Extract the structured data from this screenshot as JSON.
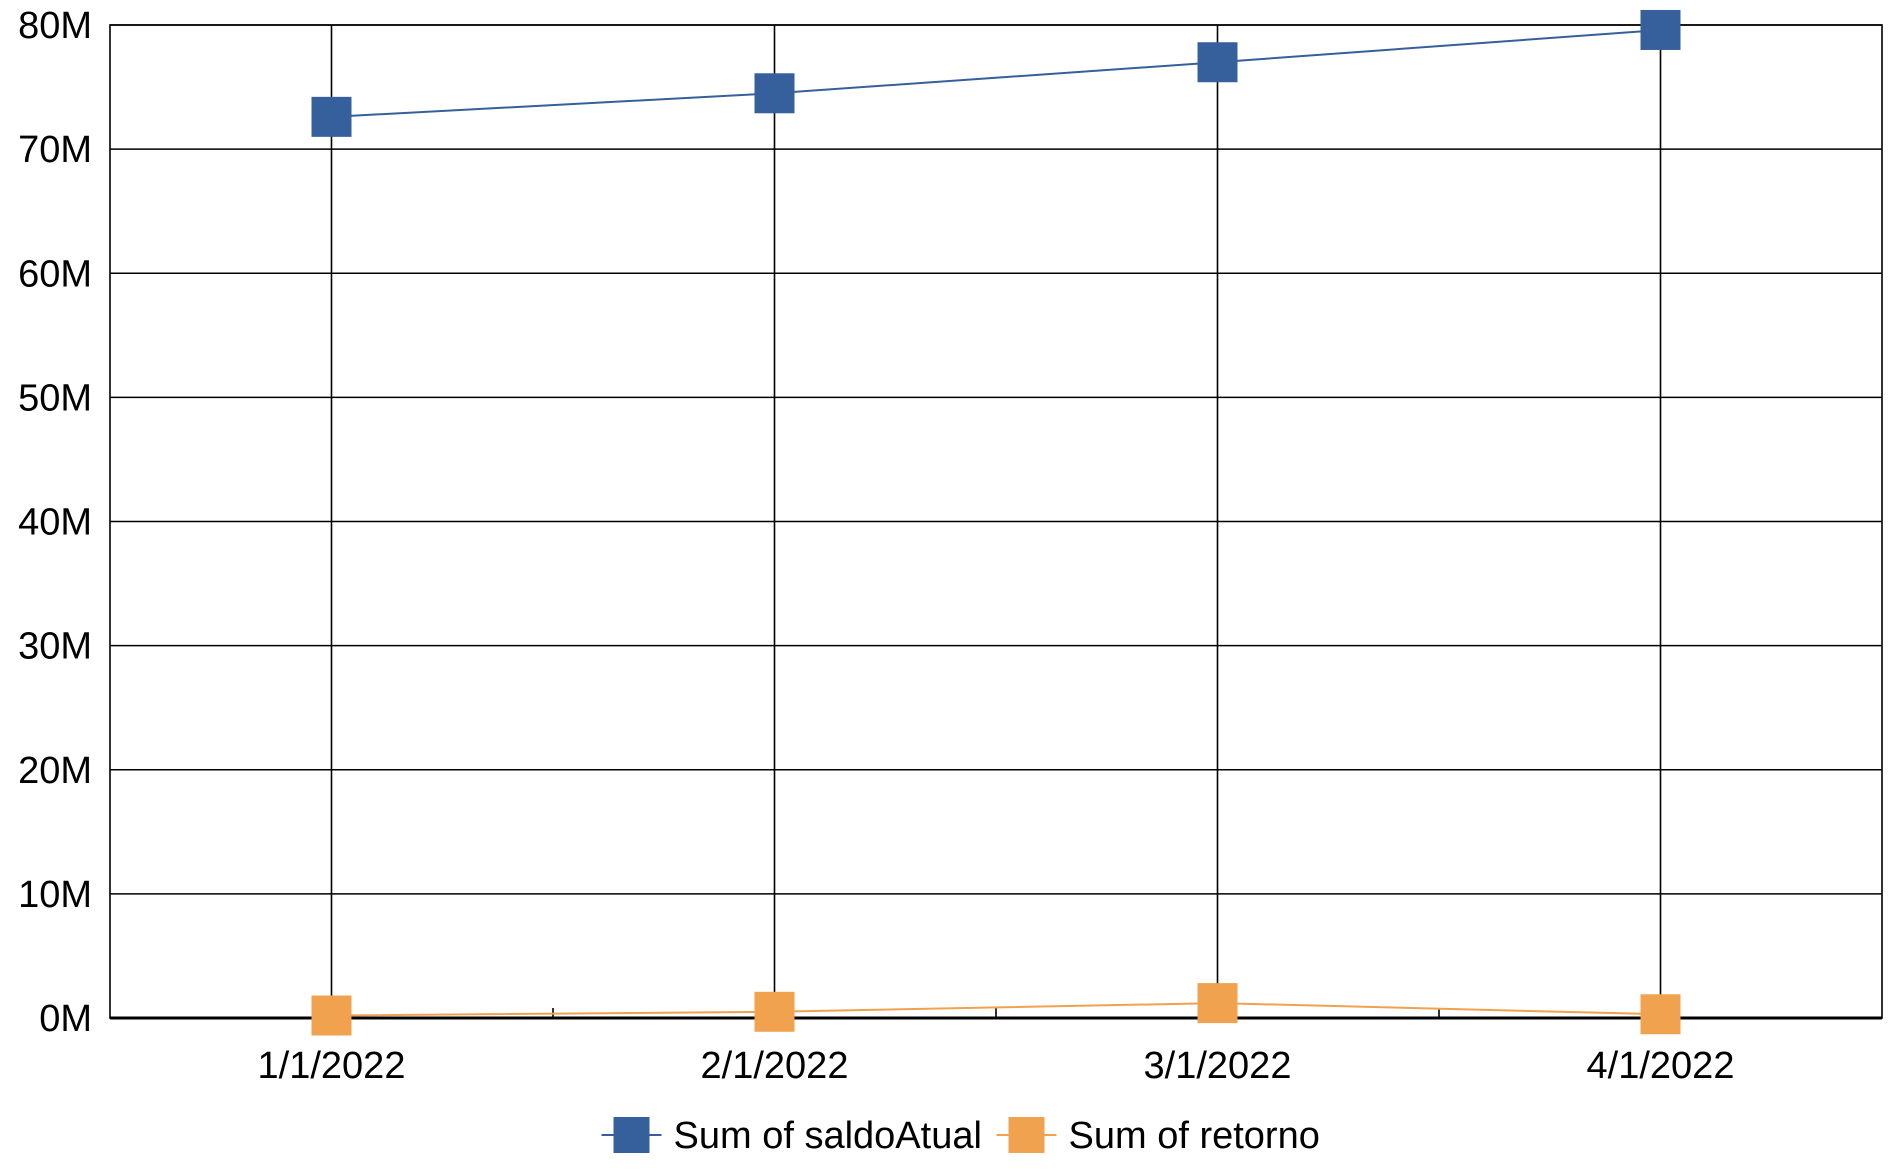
{
  "chart_data": {
    "type": "line",
    "categories": [
      "1/1/2022",
      "2/1/2022",
      "3/1/2022",
      "4/1/2022"
    ],
    "series": [
      {
        "name": "Sum of saldoAtual",
        "values": [
          72600000,
          74500000,
          77000000,
          79600000
        ],
        "color": "#35609b",
        "marker": "square"
      },
      {
        "name": "Sum of retorno",
        "values": [
          200000,
          500000,
          1200000,
          300000
        ],
        "color": "#f0a24e",
        "marker": "square"
      }
    ],
    "y_ticks": [
      "0M",
      "10M",
      "20M",
      "30M",
      "40M",
      "50M",
      "60M",
      "70M",
      "80M"
    ],
    "ylim": [
      0,
      80000000
    ],
    "grid": true,
    "legend_position": "bottom"
  }
}
